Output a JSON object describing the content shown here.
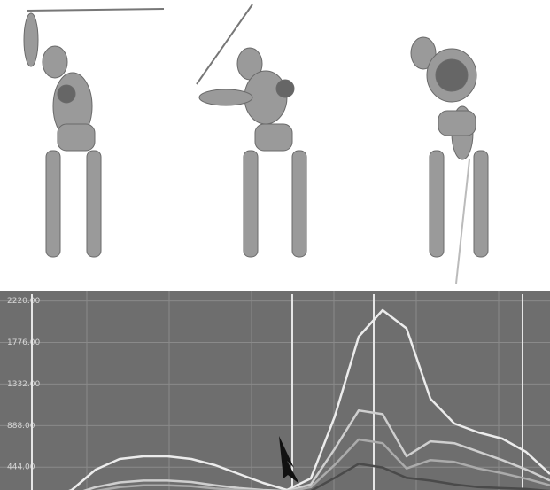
{
  "chart_data": {
    "type": "line",
    "categories": [
      null,
      null,
      null,
      null,
      null,
      null,
      null,
      null,
      null,
      null,
      null,
      null,
      null,
      null,
      null,
      null,
      null,
      null,
      null,
      null,
      null,
      null,
      null,
      null
    ],
    "series": [
      {
        "color": "#ececec",
        "values": [
          100,
          100,
          110,
          200,
          418,
          531,
          560,
          560,
          531,
          465,
          370,
          276,
          200,
          323,
          986,
          1838,
          2122,
          1927,
          1175,
          910,
          815,
          749,
          607,
          370
        ]
      },
      {
        "color": "#cfcfcf",
        "values": [
          100,
          100,
          100,
          150,
          230,
          280,
          300,
          300,
          285,
          250,
          220,
          200,
          190,
          260,
          640,
          1050,
          1010,
          560,
          720,
          700,
          610,
          520,
          420,
          300
        ]
      },
      {
        "color": "#ababab",
        "values": [
          100,
          100,
          100,
          130,
          190,
          230,
          250,
          250,
          240,
          215,
          200,
          190,
          180,
          230,
          470,
          740,
          700,
          430,
          520,
          500,
          430,
          380,
          320,
          250
        ]
      },
      {
        "color": "#4a4a4a",
        "values": [
          100,
          100,
          100,
          110,
          150,
          170,
          180,
          180,
          175,
          165,
          160,
          150,
          150,
          190,
          330,
          480,
          440,
          330,
          300,
          260,
          230,
          220,
          210,
          190
        ]
      }
    ],
    "ylim": [
      200,
      2330
    ],
    "yticks": [
      {
        "value": 2220,
        "label": "2220.00"
      },
      {
        "value": 1776,
        "label": "1776.00"
      },
      {
        "value": 1332,
        "label": "1332.00"
      },
      {
        "value": 888,
        "label": "888.00"
      },
      {
        "value": 444,
        "label": "444.00"
      }
    ],
    "grid": true
  }
}
